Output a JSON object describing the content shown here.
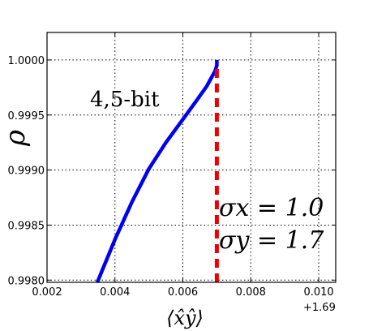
{
  "chart_data": {
    "type": "line",
    "x_offset_label": "+1.69",
    "xlabel": "⟨x̂ŷ⟩",
    "ylabel": "ρ",
    "xlim": [
      1.692,
      1.7005
    ],
    "ylim": [
      0.99798,
      1.00025
    ],
    "x_ticks": [
      1.692,
      1.694,
      1.696,
      1.698,
      1.7
    ],
    "x_tick_labels": [
      "0.002",
      "0.004",
      "0.006",
      "0.008",
      "0.010"
    ],
    "y_ticks": [
      0.998,
      0.9985,
      0.999,
      0.9995,
      1.0
    ],
    "y_tick_labels": [
      "0.9980",
      "0.9985",
      "0.9990",
      "0.9995",
      "1.0000"
    ],
    "grid": true,
    "series": [
      {
        "color": "#0000ee",
        "style": "solid",
        "x": [
          1.69348,
          1.694,
          1.6945,
          1.695,
          1.6955,
          1.696,
          1.6964,
          1.6967,
          1.69695,
          1.697,
          1.697
        ],
        "y": [
          0.99798,
          0.99837,
          0.99871,
          0.99901,
          0.99925,
          0.99946,
          0.99963,
          0.99976,
          0.9999,
          0.99995,
          1.0
        ]
      },
      {
        "color": "#ee0000",
        "style": "dashed",
        "x": [
          1.697,
          1.697
        ],
        "y": [
          0.99798,
          0.99995
        ]
      }
    ],
    "annotations": {
      "bits": "4,5-bit",
      "sigma_x": "σx = 1.0",
      "sigma_y": "σy = 1.7"
    }
  }
}
